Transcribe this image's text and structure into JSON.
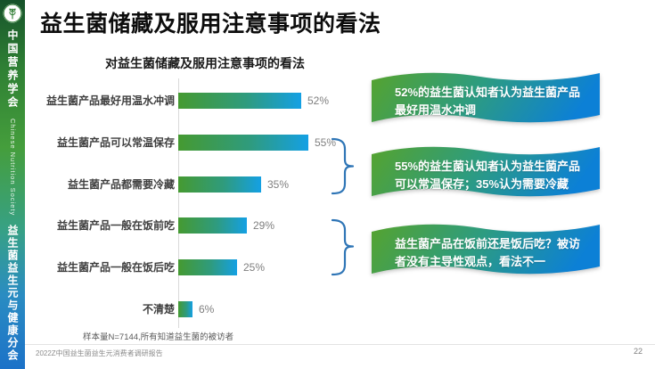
{
  "sidebar": {
    "org_cn": "中国营养学会",
    "org_en": "Chinese Nutrition Society",
    "branch": "益生菌益生元与健康分会"
  },
  "header": {
    "title": "益生菌储藏及服用注意事项的看法"
  },
  "chart_data": {
    "type": "bar",
    "orientation": "horizontal",
    "title": "对益生菌储藏及服用注意事项的看法",
    "categories": [
      "益生菌产品最好用温水冲调",
      "益生菌产品可以常温保存",
      "益生菌产品都需要冷藏",
      "益生菌产品一般在饭前吃",
      "益生菌产品一般在饭后吃",
      "不清楚"
    ],
    "values": [
      52,
      55,
      35,
      29,
      25,
      6
    ],
    "value_unit": "%",
    "value_labels": [
      "52%",
      "55%",
      "35%",
      "29%",
      "25%",
      "6%"
    ],
    "xlim": [
      0,
      60
    ],
    "grid": false,
    "legend": false,
    "note": "样本量N=7144,所有知道益生菌的被访者",
    "bar_gradient": [
      "#459a31",
      "#14a0e4"
    ]
  },
  "callouts": [
    {
      "text": "52%的益生菌认知者认为益生菌产品最好用温水冲调"
    },
    {
      "text": "55%的益生菌认知者认为益生菌产品可以常温保存；35%认为需要冷藏"
    },
    {
      "text": "益生菌产品在饭前还是饭后吃？被访者没有主导性观点，看法不一"
    }
  ],
  "footer": {
    "report_title": "2022Z中国益生菌益生元消费者调研报告",
    "page_number": "22"
  },
  "colors": {
    "brace_blue": "#2E75B6",
    "banner_green": "#55a32e",
    "banner_blue": "#0c80d6",
    "sidebar_top_green": "#16522a",
    "sidebar_bottom_blue": "#1c72c8"
  }
}
